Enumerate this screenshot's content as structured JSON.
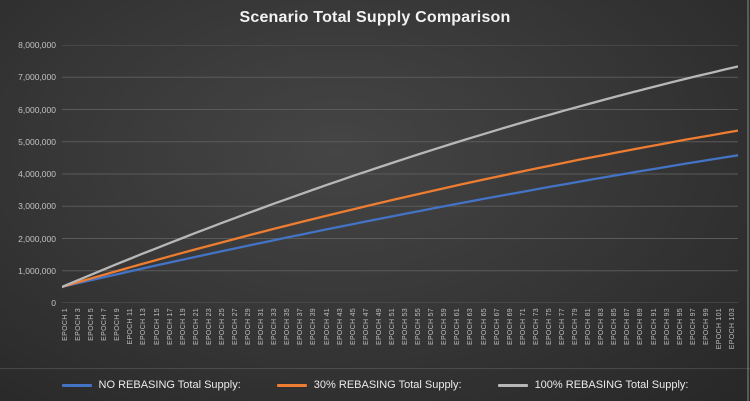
{
  "chart_data": {
    "type": "line",
    "title": "Scenario Total Supply Comparison",
    "xlabel": "",
    "ylabel": "",
    "ylim": [
      0,
      8000000
    ],
    "ytick_step": 1000000,
    "ytick_labels": [
      "0",
      "1,000,000",
      "2,000,000",
      "3,000,000",
      "4,000,000",
      "5,000,000",
      "6,000,000",
      "7,000,000",
      "8,000,000"
    ],
    "grid": true,
    "legend_position": "bottom",
    "categories": [
      "EPOCH 1",
      "EPOCH 3",
      "EPOCH 5",
      "EPOCH 7",
      "EPOCH 9",
      "EPOCH 11",
      "EPOCH 13",
      "EPOCH 15",
      "EPOCH 17",
      "EPOCH 19",
      "EPOCH 21",
      "EPOCH 23",
      "EPOCH 25",
      "EPOCH 27",
      "EPOCH 29",
      "EPOCH 31",
      "EPOCH 33",
      "EPOCH 35",
      "EPOCH 37",
      "EPOCH 39",
      "EPOCH 41",
      "EPOCH 43",
      "EPOCH 45",
      "EPOCH 47",
      "EPOCH 49",
      "EPOCH 51",
      "EPOCH 53",
      "EPOCH 55",
      "EPOCH 57",
      "EPOCH 59",
      "EPOCH 61",
      "EPOCH 63",
      "EPOCH 65",
      "EPOCH 67",
      "EPOCH 69",
      "EPOCH 71",
      "EPOCH 73",
      "EPOCH 75",
      "EPOCH 77",
      "EPOCH 79",
      "EPOCH 81",
      "EPOCH 83",
      "EPOCH 85",
      "EPOCH 87",
      "EPOCH 89",
      "EPOCH 91",
      "EPOCH 93",
      "EPOCH 95",
      "EPOCH 97",
      "EPOCH 99",
      "EPOCH 101",
      "EPOCH 103"
    ],
    "series": [
      {
        "name": "NO REBASING Total Supply:",
        "color": "#4472c4",
        "values": [
          500000,
          595000,
          689000,
          783000,
          876000,
          969000,
          1061000,
          1152000,
          1243000,
          1333000,
          1423000,
          1512000,
          1600000,
          1688000,
          1775000,
          1862000,
          1948000,
          2033000,
          2118000,
          2202000,
          2286000,
          2369000,
          2451000,
          2533000,
          2614000,
          2695000,
          2775000,
          2854000,
          2933000,
          3011000,
          3089000,
          3166000,
          3242000,
          3318000,
          3393000,
          3468000,
          3542000,
          3615000,
          3688000,
          3760000,
          3832000,
          3903000,
          3973000,
          4043000,
          4112000,
          4181000,
          4249000,
          4316000,
          4383000,
          4449000,
          4515000,
          4580000
        ]
      },
      {
        "name": "30% REBASING Total Supply:",
        "color": "#ed7d31",
        "values": [
          500000,
          620000,
          739000,
          857000,
          974000,
          1090000,
          1205000,
          1319000,
          1432000,
          1544000,
          1655000,
          1765000,
          1874000,
          1982000,
          2089000,
          2195000,
          2300000,
          2404000,
          2507000,
          2609000,
          2710000,
          2810000,
          2909000,
          3007000,
          3104000,
          3200000,
          3295000,
          3389000,
          3482000,
          3574000,
          3665000,
          3755000,
          3844000,
          3932000,
          4019000,
          4105000,
          4190000,
          4274000,
          4357000,
          4439000,
          4520000,
          4600000,
          4679000,
          4757000,
          4834000,
          4910000,
          4985000,
          5059000,
          5132000,
          5204000,
          5275000,
          5345000
        ]
      },
      {
        "name": "100% REBASING Total Supply:",
        "color": "#b7b7b7",
        "values": [
          500000,
          673000,
          844000,
          1014000,
          1183000,
          1349000,
          1515000,
          1678000,
          1840000,
          2001000,
          2160000,
          2317000,
          2473000,
          2627000,
          2780000,
          2931000,
          3081000,
          3229000,
          3375000,
          3520000,
          3664000,
          3805000,
          3946000,
          4084000,
          4221000,
          4357000,
          4491000,
          4623000,
          4754000,
          4884000,
          5011000,
          5138000,
          5262000,
          5385000,
          5507000,
          5627000,
          5745000,
          5862000,
          5977000,
          6091000,
          6203000,
          6314000,
          6423000,
          6530000,
          6636000,
          6741000,
          6843000,
          6945000,
          7044000,
          7142000,
          7239000,
          7334000
        ]
      }
    ]
  }
}
